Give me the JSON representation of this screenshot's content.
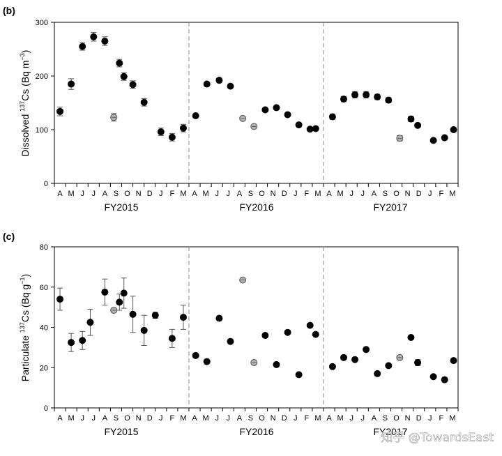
{
  "watermark": "知乎 @TowardsEast",
  "months": [
    "A",
    "M",
    "J",
    "J",
    "A",
    "S",
    "O",
    "N",
    "D",
    "J",
    "F",
    "M",
    "A",
    "M",
    "J",
    "J",
    "A",
    "S",
    "O",
    "N",
    "D",
    "J",
    "F",
    "M",
    "A",
    "M",
    "J",
    "J",
    "A",
    "S",
    "O",
    "N",
    "D",
    "J",
    "F",
    "M"
  ],
  "fiscal_years": [
    "FY2015",
    "FY2016",
    "FY2017"
  ],
  "colors": {
    "filled": "#000000",
    "open_fill": "#b0b0b0",
    "open_stroke": "#555555",
    "divider": "#888888",
    "error_bar": "#555555"
  },
  "chart_data": [
    {
      "type": "scatter",
      "panel_label": "(b)",
      "ylabel_pre": "Dissolved ",
      "ylabel_sup": "137",
      "ylabel_mid": "Cs (Bq m",
      "ylabel_sup2": "−3",
      "ylabel_post": ")",
      "ylim": [
        0,
        300
      ],
      "yticks": [
        "0",
        "100",
        "200",
        "300"
      ],
      "x_range": [
        0,
        36
      ],
      "dividers": [
        12,
        24
      ],
      "points": [
        {
          "x": 0.5,
          "y": 134,
          "err": 8,
          "open": false
        },
        {
          "x": 1.5,
          "y": 185,
          "err": 10,
          "open": false
        },
        {
          "x": 2.5,
          "y": 255,
          "err": 7,
          "open": false
        },
        {
          "x": 3.5,
          "y": 273,
          "err": 8,
          "open": false
        },
        {
          "x": 4.5,
          "y": 265,
          "err": 8,
          "open": false
        },
        {
          "x": 5.3,
          "y": 123,
          "err": 7,
          "open": true
        },
        {
          "x": 5.8,
          "y": 224,
          "err": 7,
          "open": false
        },
        {
          "x": 6.2,
          "y": 199,
          "err": 7,
          "open": false
        },
        {
          "x": 7.0,
          "y": 184,
          "err": 7,
          "open": false
        },
        {
          "x": 8.0,
          "y": 151,
          "err": 7,
          "open": false
        },
        {
          "x": 9.5,
          "y": 96,
          "err": 7,
          "open": false
        },
        {
          "x": 10.5,
          "y": 86,
          "err": 7,
          "open": false
        },
        {
          "x": 11.5,
          "y": 103,
          "err": 7,
          "open": false
        },
        {
          "x": 12.6,
          "y": 126,
          "err": 0,
          "open": false
        },
        {
          "x": 13.6,
          "y": 185,
          "err": 0,
          "open": false
        },
        {
          "x": 14.7,
          "y": 192,
          "err": 0,
          "open": false
        },
        {
          "x": 15.7,
          "y": 181,
          "err": 0,
          "open": false
        },
        {
          "x": 16.8,
          "y": 121,
          "err": 0,
          "open": true
        },
        {
          "x": 17.8,
          "y": 106,
          "err": 0,
          "open": true
        },
        {
          "x": 18.8,
          "y": 137,
          "err": 0,
          "open": false
        },
        {
          "x": 19.8,
          "y": 141,
          "err": 0,
          "open": false
        },
        {
          "x": 20.8,
          "y": 128,
          "err": 0,
          "open": false
        },
        {
          "x": 21.8,
          "y": 109,
          "err": 0,
          "open": false
        },
        {
          "x": 22.8,
          "y": 101,
          "err": 0,
          "open": false
        },
        {
          "x": 23.3,
          "y": 102,
          "err": 0,
          "open": false
        },
        {
          "x": 24.8,
          "y": 124,
          "err": 5,
          "open": false
        },
        {
          "x": 25.8,
          "y": 157,
          "err": 5,
          "open": false
        },
        {
          "x": 26.8,
          "y": 165,
          "err": 6,
          "open": false
        },
        {
          "x": 27.8,
          "y": 165,
          "err": 6,
          "open": false
        },
        {
          "x": 28.8,
          "y": 161,
          "err": 5,
          "open": false
        },
        {
          "x": 29.8,
          "y": 155,
          "err": 5,
          "open": false
        },
        {
          "x": 30.8,
          "y": 84,
          "err": 5,
          "open": true
        },
        {
          "x": 31.8,
          "y": 120,
          "err": 5,
          "open": false
        },
        {
          "x": 32.4,
          "y": 108,
          "err": 0,
          "open": false
        },
        {
          "x": 33.8,
          "y": 80,
          "err": 0,
          "open": false
        },
        {
          "x": 34.8,
          "y": 85,
          "err": 0,
          "open": false
        },
        {
          "x": 35.6,
          "y": 100,
          "err": 0,
          "open": false
        }
      ]
    },
    {
      "type": "scatter",
      "panel_label": "(c)",
      "ylabel_pre": "Particulate ",
      "ylabel_sup": "137",
      "ylabel_mid": "Cs (Bq g",
      "ylabel_sup2": "−1",
      "ylabel_post": ")",
      "ylim": [
        0,
        80
      ],
      "yticks": [
        "0",
        "20",
        "40",
        "60",
        "80"
      ],
      "x_range": [
        0,
        36
      ],
      "dividers": [
        12,
        24
      ],
      "points": [
        {
          "x": 0.5,
          "y": 54.0,
          "err": 5.5,
          "open": false
        },
        {
          "x": 1.5,
          "y": 32.5,
          "err": 4.5,
          "open": false
        },
        {
          "x": 2.5,
          "y": 33.5,
          "err": 4.5,
          "open": false
        },
        {
          "x": 3.2,
          "y": 42.5,
          "err": 6.5,
          "open": false
        },
        {
          "x": 4.5,
          "y": 57.5,
          "err": 6.5,
          "open": false
        },
        {
          "x": 5.3,
          "y": 48.5,
          "err": 1.0,
          "open": true
        },
        {
          "x": 5.8,
          "y": 52.5,
          "err": 4.0,
          "open": false
        },
        {
          "x": 6.2,
          "y": 57.0,
          "err": 7.5,
          "open": false
        },
        {
          "x": 7.0,
          "y": 46.5,
          "err": 9.0,
          "open": false
        },
        {
          "x": 8.0,
          "y": 38.5,
          "err": 7.5,
          "open": false
        },
        {
          "x": 9.0,
          "y": 46.0,
          "err": 1.5,
          "open": false
        },
        {
          "x": 10.5,
          "y": 34.5,
          "err": 4.5,
          "open": false
        },
        {
          "x": 11.5,
          "y": 45.0,
          "err": 6.0,
          "open": false
        },
        {
          "x": 12.6,
          "y": 26.0,
          "err": 0,
          "open": false
        },
        {
          "x": 13.6,
          "y": 23.0,
          "err": 0,
          "open": false
        },
        {
          "x": 14.7,
          "y": 44.5,
          "err": 0,
          "open": false
        },
        {
          "x": 15.7,
          "y": 33.0,
          "err": 0,
          "open": false
        },
        {
          "x": 16.8,
          "y": 63.5,
          "err": 0,
          "open": true
        },
        {
          "x": 17.8,
          "y": 22.5,
          "err": 0,
          "open": true
        },
        {
          "x": 18.8,
          "y": 36.0,
          "err": 0,
          "open": false
        },
        {
          "x": 19.8,
          "y": 21.5,
          "err": 0,
          "open": false
        },
        {
          "x": 20.8,
          "y": 37.5,
          "err": 0,
          "open": false
        },
        {
          "x": 21.8,
          "y": 16.5,
          "err": 0,
          "open": false
        },
        {
          "x": 22.8,
          "y": 41.0,
          "err": 0,
          "open": false
        },
        {
          "x": 23.3,
          "y": 36.5,
          "err": 0,
          "open": false
        },
        {
          "x": 24.8,
          "y": 20.5,
          "err": 0,
          "open": false
        },
        {
          "x": 25.8,
          "y": 25.0,
          "err": 0,
          "open": false
        },
        {
          "x": 26.8,
          "y": 24.0,
          "err": 0,
          "open": false
        },
        {
          "x": 27.8,
          "y": 29.0,
          "err": 0,
          "open": false
        },
        {
          "x": 28.8,
          "y": 17.0,
          "err": 0,
          "open": false
        },
        {
          "x": 29.8,
          "y": 21.0,
          "err": 0,
          "open": false
        },
        {
          "x": 30.8,
          "y": 25.0,
          "err": 0,
          "open": true
        },
        {
          "x": 31.8,
          "y": 35.0,
          "err": 0,
          "open": false
        },
        {
          "x": 32.4,
          "y": 22.5,
          "err": 1.5,
          "open": false
        },
        {
          "x": 33.8,
          "y": 15.5,
          "err": 0,
          "open": false
        },
        {
          "x": 34.8,
          "y": 14.0,
          "err": 0,
          "open": false
        },
        {
          "x": 35.6,
          "y": 23.5,
          "err": 0,
          "open": false
        }
      ]
    }
  ]
}
